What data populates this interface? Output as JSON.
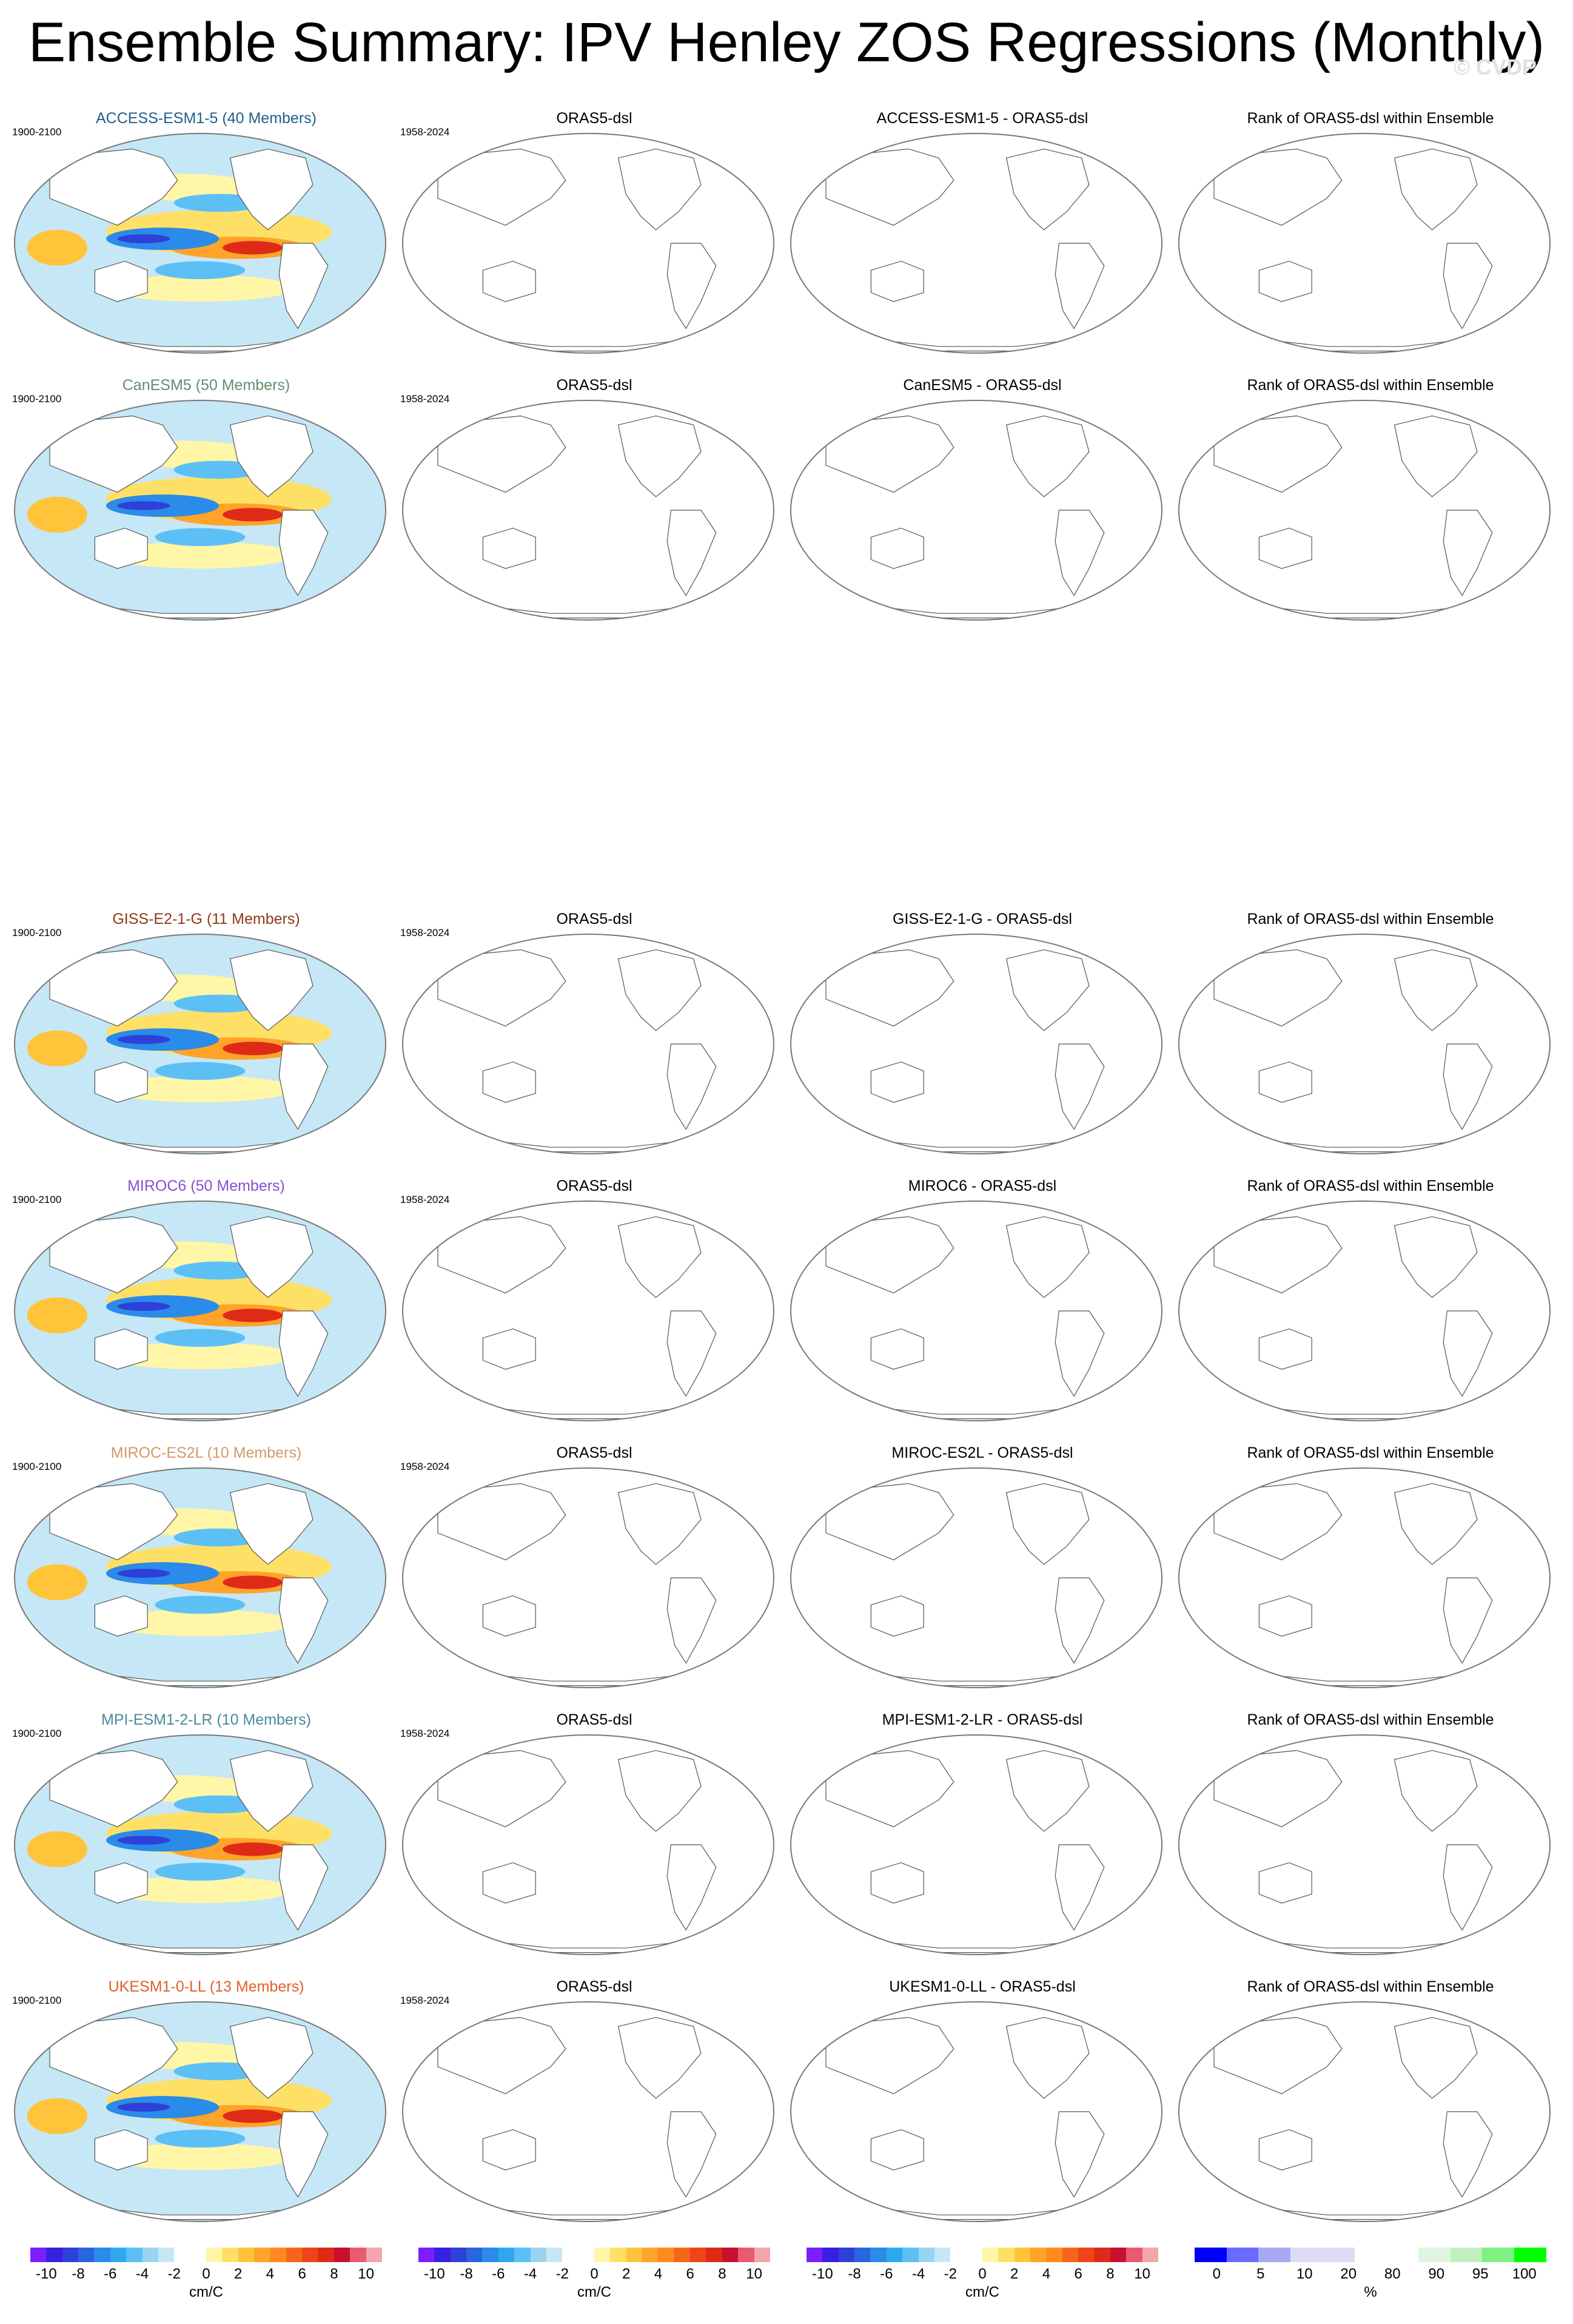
{
  "title": "Ensemble Summary: IPV Henley ZOS Regressions (Monthly)",
  "watermark": "© CVDP",
  "rows": [
    {
      "model": "ACCESS-ESM1-5 (40 Members)",
      "model_color": "#1f5f8b",
      "period": "1900-2100",
      "obs_title": "ORAS5-dsl",
      "obs_period": "1958-2024",
      "diff_title": "ACCESS-ESM1-5 - ORAS5-dsl",
      "rank_title": "Rank of ORAS5-dsl within Ensemble"
    },
    {
      "model": "CanESM5 (50 Members)",
      "model_color": "#5f8f6f",
      "period": "1900-2100",
      "obs_title": "ORAS5-dsl",
      "obs_period": "1958-2024",
      "diff_title": "CanESM5 - ORAS5-dsl",
      "rank_title": "Rank of ORAS5-dsl within Ensemble"
    },
    {
      "model": "GISS-E2-1-G (11 Members)",
      "model_color": "#8b3a1a",
      "period": "1900-2100",
      "obs_title": "ORAS5-dsl",
      "obs_period": "1958-2024",
      "diff_title": "GISS-E2-1-G - ORAS5-dsl",
      "rank_title": "Rank of ORAS5-dsl within Ensemble"
    },
    {
      "model": "MIROC6 (50 Members)",
      "model_color": "#8a4fd0",
      "period": "1900-2100",
      "obs_title": "ORAS5-dsl",
      "obs_period": "1958-2024",
      "diff_title": "MIROC6 - ORAS5-dsl",
      "rank_title": "Rank of ORAS5-dsl within Ensemble"
    },
    {
      "model": "MIROC-ES2L (10 Members)",
      "model_color": "#d19a6a",
      "period": "1900-2100",
      "obs_title": "ORAS5-dsl",
      "obs_period": "1958-2024",
      "diff_title": "MIROC-ES2L - ORAS5-dsl",
      "rank_title": "Rank of ORAS5-dsl within Ensemble"
    },
    {
      "model": "MPI-ESM1-2-LR (10 Members)",
      "model_color": "#4a8a9a",
      "period": "1900-2100",
      "obs_title": "ORAS5-dsl",
      "obs_period": "1958-2024",
      "diff_title": "MPI-ESM1-2-LR - ORAS5-dsl",
      "rank_title": "Rank of ORAS5-dsl within Ensemble"
    },
    {
      "model": "UKESM1-0-LL (13 Members)",
      "model_color": "#e0602a",
      "period": "1900-2100",
      "obs_title": "ORAS5-dsl",
      "obs_period": "1958-2024",
      "diff_title": "UKESM1-0-LL - ORAS5-dsl",
      "rank_title": "Rank of ORAS5-dsl within Ensemble"
    }
  ],
  "colorbars": {
    "regression": {
      "colors": [
        "#7a1fff",
        "#3a1fe0",
        "#2f40d8",
        "#2a65e0",
        "#2a8be8",
        "#2fa8f0",
        "#5cc0f5",
        "#9ad4f0",
        "#c6e7f6",
        "#ffffff",
        "#ffffff",
        "#fff6a8",
        "#ffe066",
        "#ffc43a",
        "#ffa428",
        "#ff8a1e",
        "#f7651a",
        "#ee4418",
        "#e02a18",
        "#c8102e",
        "#e85a70",
        "#f5a5ad"
      ],
      "tick_labels": [
        "-10",
        "-8",
        "-6",
        "-4",
        "-2",
        "0",
        "2",
        "4",
        "6",
        "8",
        "10"
      ],
      "unit": "cm/C"
    },
    "rank": {
      "colors": [
        "#0000ff",
        "#6a6aff",
        "#a8a8f5",
        "#dcdcf5",
        "#dcdcf5",
        "#ffffff",
        "#ffffff",
        "#e0f5e0",
        "#c0f0c0",
        "#80f080",
        "#00ff00"
      ],
      "tick_labels": [
        "0",
        "5",
        "10",
        "20",
        "80",
        "90",
        "95",
        "100"
      ],
      "unit": "%"
    }
  }
}
